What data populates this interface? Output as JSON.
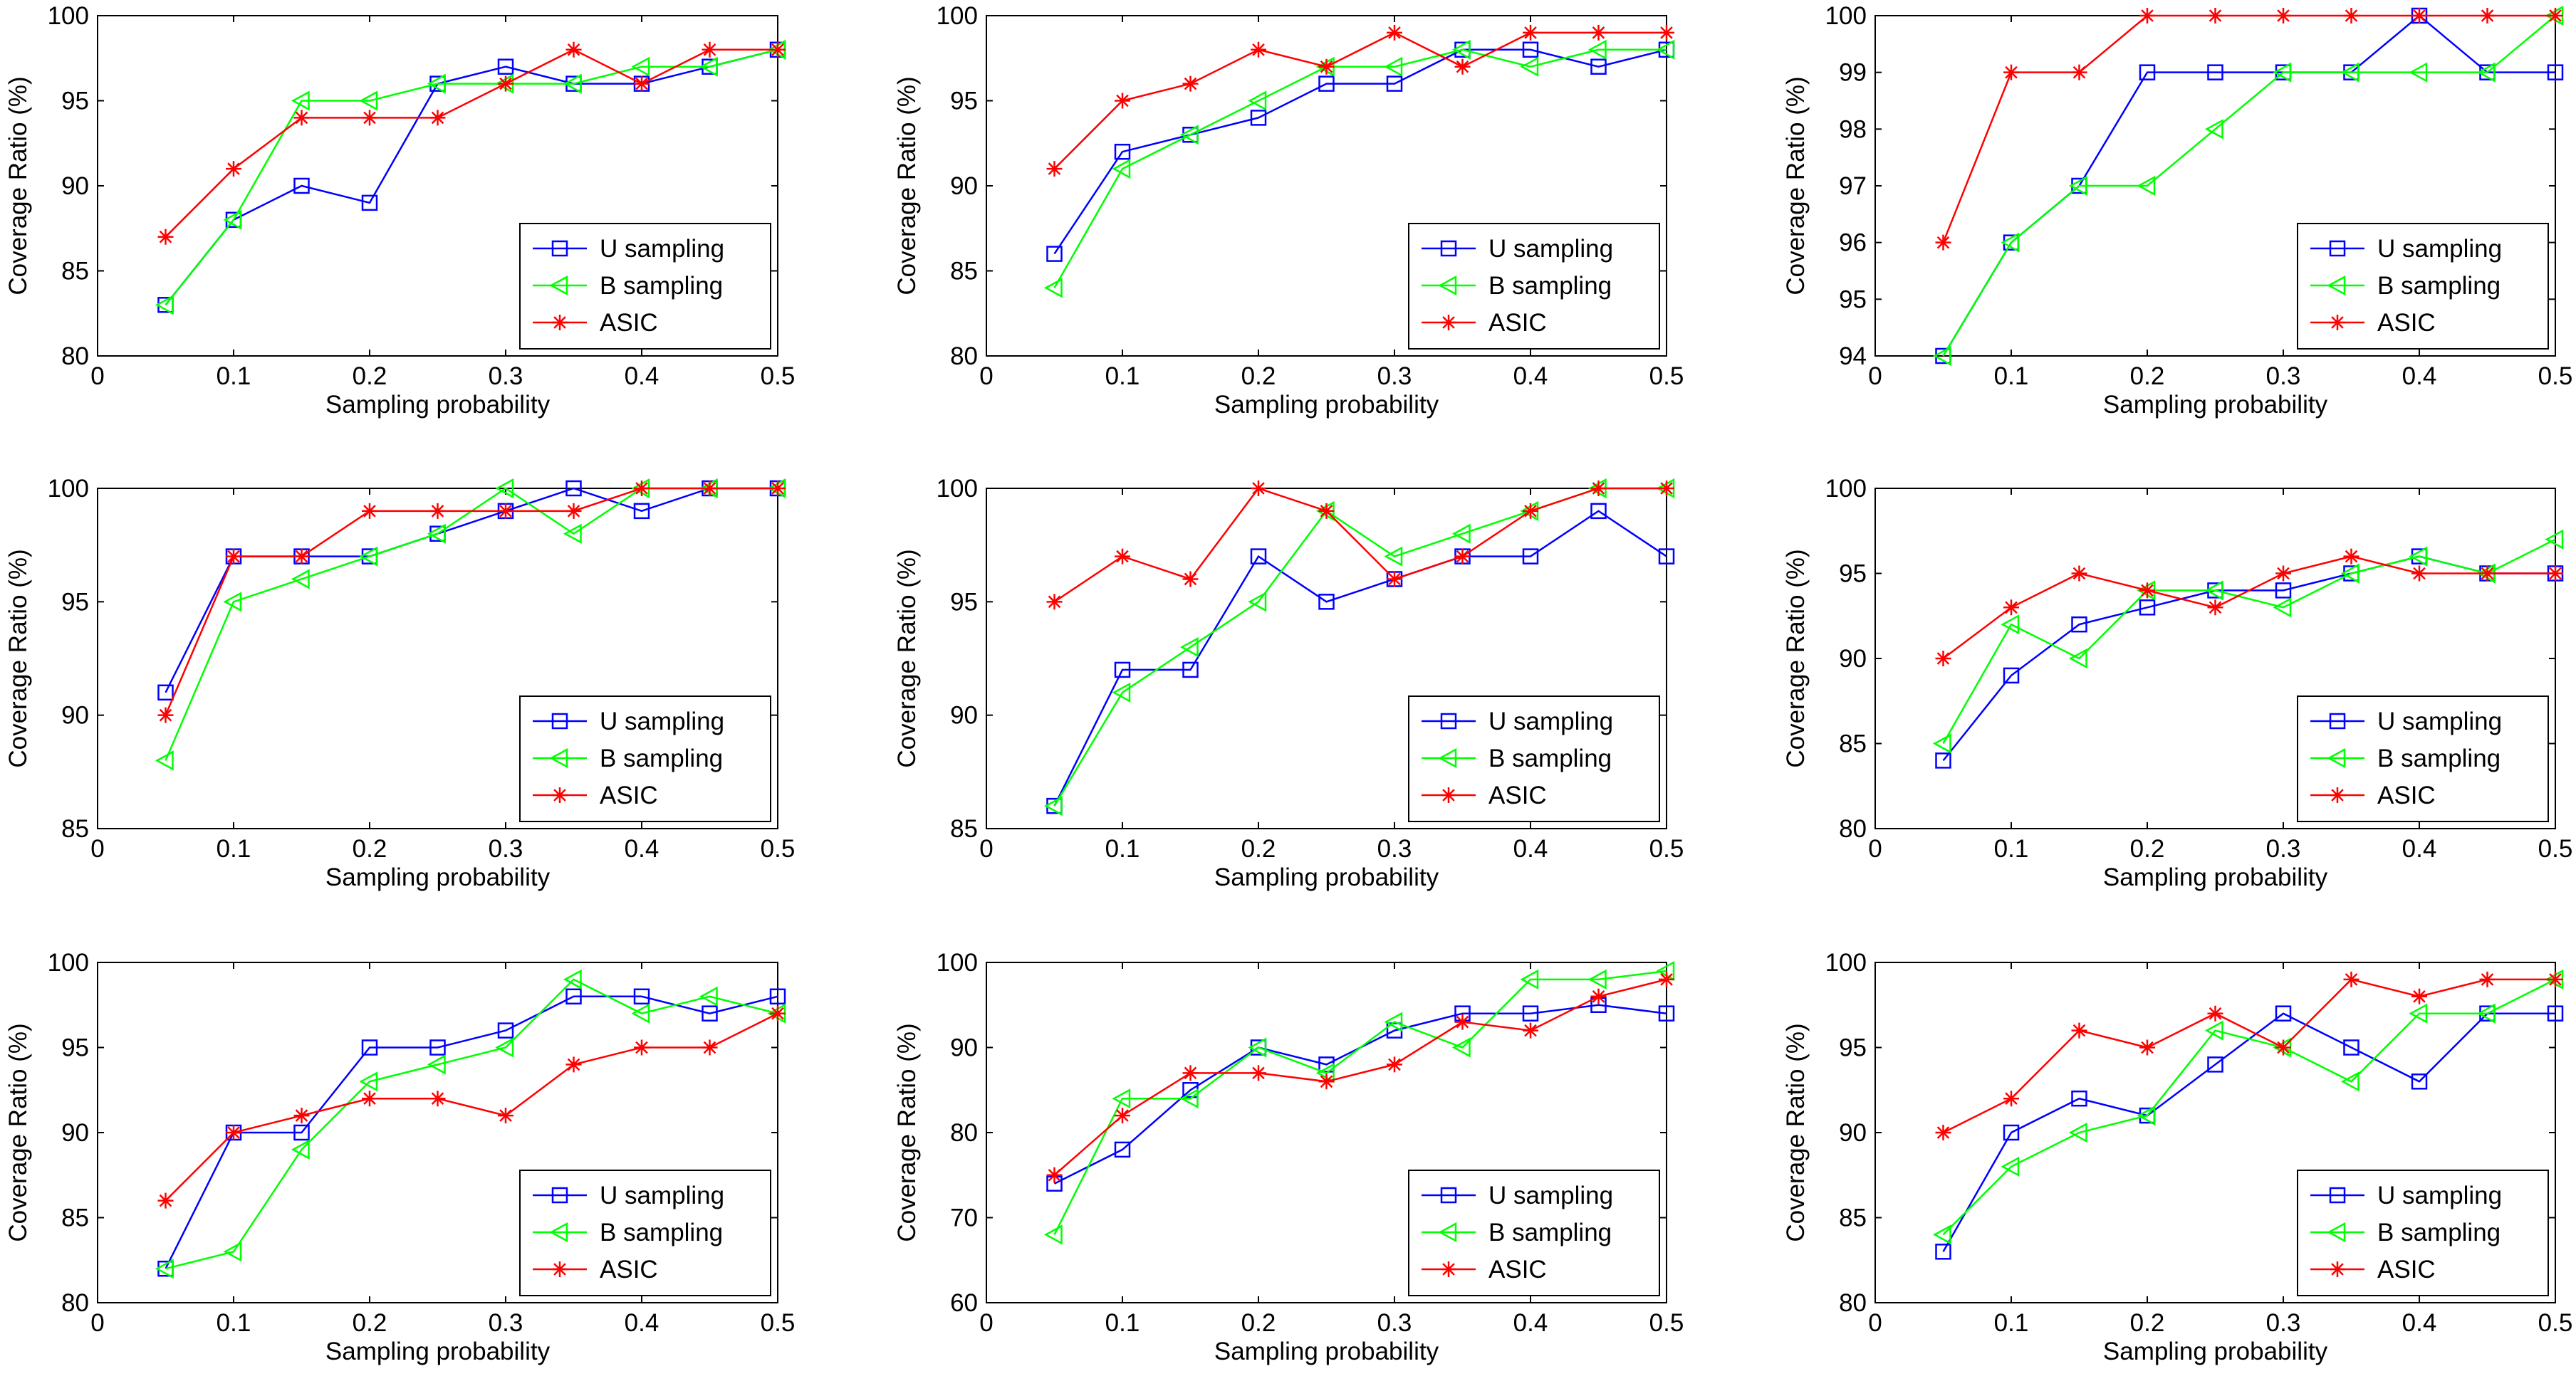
{
  "colors": {
    "u_sampling": "#0000ff",
    "b_sampling": "#00ff00",
    "asic": "#ff0000",
    "axis": "#000000",
    "background": "#ffffff"
  },
  "markers": {
    "u_sampling": "square",
    "b_sampling": "triangle-left",
    "asic": "asterisk"
  },
  "chart_data": [
    {
      "type": "line",
      "position": "row1-col1",
      "xlabel": "Sampling probability",
      "ylabel": "Coverage Ratio (%)",
      "xlim": [
        0,
        0.5
      ],
      "ylim": [
        80,
        100
      ],
      "xticks": [
        0,
        0.1,
        0.2,
        0.3,
        0.4,
        0.5
      ],
      "xtick_labels": [
        "0",
        "0.1",
        "0.2",
        "0.3",
        "0.4",
        "0.5"
      ],
      "yticks": [
        80,
        85,
        90,
        95,
        100
      ],
      "ytick_labels": [
        "80",
        "85",
        "90",
        "95",
        "100"
      ],
      "legend_location": "lower-right",
      "x": [
        0.05,
        0.1,
        0.15,
        0.2,
        0.25,
        0.3,
        0.35,
        0.4,
        0.45,
        0.5
      ],
      "series": [
        {
          "name": "U sampling",
          "key": "u_sampling",
          "values": [
            83,
            88,
            90,
            89,
            96,
            97,
            96,
            96,
            97,
            98
          ]
        },
        {
          "name": "B sampling",
          "key": "b_sampling",
          "values": [
            83,
            88,
            95,
            95,
            96,
            96,
            96,
            97,
            97,
            98
          ]
        },
        {
          "name": "ASIC",
          "key": "asic",
          "values": [
            87,
            91,
            94,
            94,
            94,
            96,
            98,
            96,
            98,
            98
          ]
        }
      ]
    },
    {
      "type": "line",
      "position": "row1-col2",
      "xlabel": "Sampling probability",
      "ylabel": "Coverage Ratio (%)",
      "xlim": [
        0,
        0.5
      ],
      "ylim": [
        80,
        100
      ],
      "xticks": [
        0,
        0.1,
        0.2,
        0.3,
        0.4,
        0.5
      ],
      "xtick_labels": [
        "0",
        "0.1",
        "0.2",
        "0.3",
        "0.4",
        "0.5"
      ],
      "yticks": [
        80,
        85,
        90,
        95,
        100
      ],
      "ytick_labels": [
        "80",
        "85",
        "90",
        "95",
        "100"
      ],
      "legend_location": "lower-right",
      "x": [
        0.05,
        0.1,
        0.15,
        0.2,
        0.25,
        0.3,
        0.35,
        0.4,
        0.45,
        0.5
      ],
      "series": [
        {
          "name": "U sampling",
          "key": "u_sampling",
          "values": [
            86,
            92,
            93,
            94,
            96,
            96,
            98,
            98,
            97,
            98
          ]
        },
        {
          "name": "B sampling",
          "key": "b_sampling",
          "values": [
            84,
            91,
            93,
            95,
            97,
            97,
            98,
            97,
            98,
            98
          ]
        },
        {
          "name": "ASIC",
          "key": "asic",
          "values": [
            91,
            95,
            96,
            98,
            97,
            99,
            97,
            99,
            99,
            99
          ]
        }
      ]
    },
    {
      "type": "line",
      "position": "row1-col3",
      "xlabel": "Sampling probability",
      "ylabel": "Coverage Ratio (%)",
      "xlim": [
        0,
        0.5
      ],
      "ylim": [
        94,
        100
      ],
      "xticks": [
        0,
        0.1,
        0.2,
        0.3,
        0.4,
        0.5
      ],
      "xtick_labels": [
        "0",
        "0.1",
        "0.2",
        "0.3",
        "0.4",
        "0.5"
      ],
      "yticks": [
        94,
        95,
        96,
        97,
        98,
        99,
        100
      ],
      "ytick_labels": [
        "94",
        "95",
        "96",
        "97",
        "98",
        "99",
        "100"
      ],
      "legend_location": "lower-right",
      "x": [
        0.05,
        0.1,
        0.15,
        0.2,
        0.25,
        0.3,
        0.35,
        0.4,
        0.45,
        0.5
      ],
      "series": [
        {
          "name": "U sampling",
          "key": "u_sampling",
          "values": [
            94,
            96,
            97,
            99,
            99,
            99,
            99,
            100,
            99,
            99
          ]
        },
        {
          "name": "B sampling",
          "key": "b_sampling",
          "values": [
            94,
            96,
            97,
            97,
            98,
            99,
            99,
            99,
            99,
            100
          ]
        },
        {
          "name": "ASIC",
          "key": "asic",
          "values": [
            96,
            99,
            99,
            100,
            100,
            100,
            100,
            100,
            100,
            100
          ]
        }
      ]
    },
    {
      "type": "line",
      "position": "row2-col1",
      "xlabel": "Sampling probability",
      "ylabel": "Coverage Ratio (%)",
      "xlim": [
        0,
        0.5
      ],
      "ylim": [
        85,
        100
      ],
      "xticks": [
        0,
        0.1,
        0.2,
        0.3,
        0.4,
        0.5
      ],
      "xtick_labels": [
        "0",
        "0.1",
        "0.2",
        "0.3",
        "0.4",
        "0.5"
      ],
      "yticks": [
        85,
        90,
        95,
        100
      ],
      "ytick_labels": [
        "85",
        "90",
        "95",
        "100"
      ],
      "legend_location": "lower-right",
      "x": [
        0.05,
        0.1,
        0.15,
        0.2,
        0.25,
        0.3,
        0.35,
        0.4,
        0.45,
        0.5
      ],
      "series": [
        {
          "name": "U sampling",
          "key": "u_sampling",
          "values": [
            91,
            97,
            97,
            97,
            98,
            99,
            100,
            99,
            100,
            100
          ]
        },
        {
          "name": "B sampling",
          "key": "b_sampling",
          "values": [
            88,
            95,
            96,
            97,
            98,
            100,
            98,
            100,
            100,
            100
          ]
        },
        {
          "name": "ASIC",
          "key": "asic",
          "values": [
            90,
            97,
            97,
            99,
            99,
            99,
            99,
            100,
            100,
            100
          ]
        }
      ]
    },
    {
      "type": "line",
      "position": "row2-col2",
      "xlabel": "Sampling probability",
      "ylabel": "Coverage Ratio (%)",
      "xlim": [
        0,
        0.5
      ],
      "ylim": [
        85,
        100
      ],
      "xticks": [
        0,
        0.1,
        0.2,
        0.3,
        0.4,
        0.5
      ],
      "xtick_labels": [
        "0",
        "0.1",
        "0.2",
        "0.3",
        "0.4",
        "0.5"
      ],
      "yticks": [
        85,
        90,
        95,
        100
      ],
      "ytick_labels": [
        "85",
        "90",
        "95",
        "100"
      ],
      "legend_location": "lower-right",
      "x": [
        0.05,
        0.1,
        0.15,
        0.2,
        0.25,
        0.3,
        0.35,
        0.4,
        0.45,
        0.5
      ],
      "series": [
        {
          "name": "U sampling",
          "key": "u_sampling",
          "values": [
            86,
            92,
            92,
            97,
            95,
            96,
            97,
            97,
            99,
            97
          ]
        },
        {
          "name": "B sampling",
          "key": "b_sampling",
          "values": [
            86,
            91,
            93,
            95,
            99,
            97,
            98,
            99,
            100,
            100
          ]
        },
        {
          "name": "ASIC",
          "key": "asic",
          "values": [
            95,
            97,
            96,
            100,
            99,
            96,
            97,
            99,
            100,
            100
          ]
        }
      ]
    },
    {
      "type": "line",
      "position": "row2-col3",
      "xlabel": "Sampling probability",
      "ylabel": "Coverage Ratio (%)",
      "xlim": [
        0,
        0.5
      ],
      "ylim": [
        80,
        100
      ],
      "xticks": [
        0,
        0.1,
        0.2,
        0.3,
        0.4,
        0.5
      ],
      "xtick_labels": [
        "0",
        "0.1",
        "0.2",
        "0.3",
        "0.4",
        "0.5"
      ],
      "yticks": [
        80,
        85,
        90,
        95,
        100
      ],
      "ytick_labels": [
        "80",
        "85",
        "90",
        "95",
        "100"
      ],
      "legend_location": "lower-right",
      "x": [
        0.05,
        0.1,
        0.15,
        0.2,
        0.25,
        0.3,
        0.35,
        0.4,
        0.45,
        0.5
      ],
      "series": [
        {
          "name": "U sampling",
          "key": "u_sampling",
          "values": [
            84,
            89,
            92,
            93,
            94,
            94,
            95,
            96,
            95,
            95
          ]
        },
        {
          "name": "B sampling",
          "key": "b_sampling",
          "values": [
            85,
            92,
            90,
            94,
            94,
            93,
            95,
            96,
            95,
            97
          ]
        },
        {
          "name": "ASIC",
          "key": "asic",
          "values": [
            90,
            93,
            95,
            94,
            93,
            95,
            96,
            95,
            95,
            95
          ]
        }
      ]
    },
    {
      "type": "line",
      "position": "row3-col1",
      "xlabel": "Sampling probability",
      "ylabel": "Coverage Ratio (%)",
      "xlim": [
        0,
        0.5
      ],
      "ylim": [
        80,
        100
      ],
      "xticks": [
        0,
        0.1,
        0.2,
        0.3,
        0.4,
        0.5
      ],
      "xtick_labels": [
        "0",
        "0.1",
        "0.2",
        "0.3",
        "0.4",
        "0.5"
      ],
      "yticks": [
        80,
        85,
        90,
        95,
        100
      ],
      "ytick_labels": [
        "80",
        "85",
        "90",
        "95",
        "100"
      ],
      "legend_location": "lower-right",
      "x": [
        0.05,
        0.1,
        0.15,
        0.2,
        0.25,
        0.3,
        0.35,
        0.4,
        0.45,
        0.5
      ],
      "series": [
        {
          "name": "U sampling",
          "key": "u_sampling",
          "values": [
            82,
            90,
            90,
            95,
            95,
            96,
            98,
            98,
            97,
            98
          ]
        },
        {
          "name": "B sampling",
          "key": "b_sampling",
          "values": [
            82,
            83,
            89,
            93,
            94,
            95,
            99,
            97,
            98,
            97
          ]
        },
        {
          "name": "ASIC",
          "key": "asic",
          "values": [
            86,
            90,
            91,
            92,
            92,
            91,
            94,
            95,
            95,
            97
          ]
        }
      ]
    },
    {
      "type": "line",
      "position": "row3-col2",
      "xlabel": "Sampling probability",
      "ylabel": "Coverage Ratio (%)",
      "xlim": [
        0,
        0.5
      ],
      "ylim": [
        60,
        100
      ],
      "xticks": [
        0,
        0.1,
        0.2,
        0.3,
        0.4,
        0.5
      ],
      "xtick_labels": [
        "0",
        "0.1",
        "0.2",
        "0.3",
        "0.4",
        "0.5"
      ],
      "yticks": [
        60,
        70,
        80,
        90,
        100
      ],
      "ytick_labels": [
        "60",
        "70",
        "80",
        "90",
        "100"
      ],
      "legend_location": "lower-right",
      "x": [
        0.05,
        0.1,
        0.15,
        0.2,
        0.25,
        0.3,
        0.35,
        0.4,
        0.45,
        0.5
      ],
      "series": [
        {
          "name": "U sampling",
          "key": "u_sampling",
          "values": [
            74,
            78,
            85,
            90,
            88,
            92,
            94,
            94,
            95,
            94
          ]
        },
        {
          "name": "B sampling",
          "key": "b_sampling",
          "values": [
            68,
            84,
            84,
            90,
            87,
            93,
            90,
            98,
            98,
            99
          ]
        },
        {
          "name": "ASIC",
          "key": "asic",
          "values": [
            75,
            82,
            87,
            87,
            86,
            88,
            93,
            92,
            96,
            98
          ]
        }
      ]
    },
    {
      "type": "line",
      "position": "row3-col3",
      "xlabel": "Sampling probability",
      "ylabel": "Coverage Ratio (%)",
      "xlim": [
        0,
        0.5
      ],
      "ylim": [
        80,
        100
      ],
      "xticks": [
        0,
        0.1,
        0.2,
        0.3,
        0.4,
        0.5
      ],
      "xtick_labels": [
        "0",
        "0.1",
        "0.2",
        "0.3",
        "0.4",
        "0.5"
      ],
      "yticks": [
        80,
        85,
        90,
        95,
        100
      ],
      "ytick_labels": [
        "80",
        "85",
        "90",
        "95",
        "100"
      ],
      "legend_location": "lower-right",
      "x": [
        0.05,
        0.1,
        0.15,
        0.2,
        0.25,
        0.3,
        0.35,
        0.4,
        0.45,
        0.5
      ],
      "series": [
        {
          "name": "U sampling",
          "key": "u_sampling",
          "values": [
            83,
            90,
            92,
            91,
            94,
            97,
            95,
            93,
            97,
            97
          ]
        },
        {
          "name": "B sampling",
          "key": "b_sampling",
          "values": [
            84,
            88,
            90,
            91,
            96,
            95,
            93,
            97,
            97,
            99
          ]
        },
        {
          "name": "ASIC",
          "key": "asic",
          "values": [
            90,
            92,
            96,
            95,
            97,
            95,
            99,
            98,
            99,
            99
          ]
        }
      ]
    }
  ]
}
